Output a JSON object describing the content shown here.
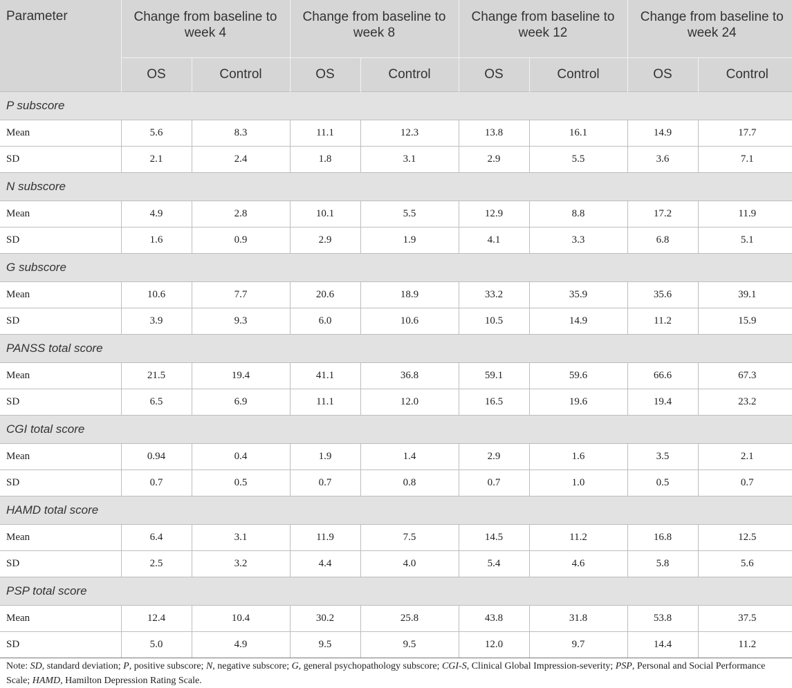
{
  "header": {
    "parameter": "Parameter",
    "groups": [
      "Change from baseline to week 4",
      "Change from baseline to week 8",
      "Change from baseline to week 12",
      "Change from baseline to week 24"
    ],
    "sub": [
      "OS",
      "Control"
    ]
  },
  "sections": [
    {
      "title": "P subscore",
      "rows": [
        {
          "label": "Mean",
          "values": [
            "5.6",
            "8.3",
            "11.1",
            "12.3",
            "13.8",
            "16.1",
            "14.9",
            "17.7"
          ]
        },
        {
          "label": "SD",
          "values": [
            "2.1",
            "2.4",
            "1.8",
            "3.1",
            "2.9",
            "5.5",
            "3.6",
            "7.1"
          ]
        }
      ]
    },
    {
      "title": "N subscore",
      "rows": [
        {
          "label": "Mean",
          "values": [
            "4.9",
            "2.8",
            "10.1",
            "5.5",
            "12.9",
            "8.8",
            "17.2",
            "11.9"
          ]
        },
        {
          "label": "SD",
          "values": [
            "1.6",
            "0.9",
            "2.9",
            "1.9",
            "4.1",
            "3.3",
            "6.8",
            "5.1"
          ]
        }
      ]
    },
    {
      "title": "G subscore",
      "rows": [
        {
          "label": "Mean",
          "values": [
            "10.6",
            "7.7",
            "20.6",
            "18.9",
            "33.2",
            "35.9",
            "35.6",
            "39.1"
          ]
        },
        {
          "label": "SD",
          "values": [
            "3.9",
            "9.3",
            "6.0",
            "10.6",
            "10.5",
            "14.9",
            "11.2",
            "15.9"
          ]
        }
      ]
    },
    {
      "title": "PANSS total score",
      "rows": [
        {
          "label": "Mean",
          "values": [
            "21.5",
            "19.4",
            "41.1",
            "36.8",
            "59.1",
            "59.6",
            "66.6",
            "67.3"
          ]
        },
        {
          "label": "SD",
          "values": [
            "6.5",
            "6.9",
            "11.1",
            "12.0",
            "16.5",
            "19.6",
            "19.4",
            "23.2"
          ]
        }
      ]
    },
    {
      "title": "CGI total score",
      "rows": [
        {
          "label": "Mean",
          "values": [
            "0.94",
            "0.4",
            "1.9",
            "1.4",
            "2.9",
            "1.6",
            "3.5",
            "2.1"
          ]
        },
        {
          "label": "SD",
          "values": [
            "0.7",
            "0.5",
            "0.7",
            "0.8",
            "0.7",
            "1.0",
            "0.5",
            "0.7"
          ]
        }
      ]
    },
    {
      "title": "HAMD total score",
      "rows": [
        {
          "label": "Mean",
          "values": [
            "6.4",
            "3.1",
            "11.9",
            "7.5",
            "14.5",
            "11.2",
            "16.8",
            "12.5"
          ]
        },
        {
          "label": "SD",
          "values": [
            "2.5",
            "3.2",
            "4.4",
            "4.0",
            "5.4",
            "4.6",
            "5.8",
            "5.6"
          ]
        }
      ]
    },
    {
      "title": "PSP total score",
      "rows": [
        {
          "label": "Mean",
          "values": [
            "12.4",
            "10.4",
            "30.2",
            "25.8",
            "43.8",
            "31.8",
            "53.8",
            "37.5"
          ]
        },
        {
          "label": "SD",
          "values": [
            "5.0",
            "4.9",
            "9.5",
            "9.5",
            "12.0",
            "9.7",
            "14.4",
            "11.2"
          ]
        }
      ]
    }
  ],
  "note": [
    {
      "text": "Note: ",
      "italic": false
    },
    {
      "text": "SD",
      "italic": true
    },
    {
      "text": ", standard deviation; ",
      "italic": false
    },
    {
      "text": "P",
      "italic": true
    },
    {
      "text": ", positive subscore; ",
      "italic": false
    },
    {
      "text": "N",
      "italic": true
    },
    {
      "text": ", negative subscore; ",
      "italic": false
    },
    {
      "text": "G",
      "italic": true
    },
    {
      "text": ", general psychopathology subscore; ",
      "italic": false
    },
    {
      "text": "CGI-S",
      "italic": true
    },
    {
      "text": ", Clinical Global Impression-severity; ",
      "italic": false
    },
    {
      "text": "PSP",
      "italic": true
    },
    {
      "text": ", Personal and Social Performance Scale; ",
      "italic": false
    },
    {
      "text": "HAMD",
      "italic": true
    },
    {
      "text": ", Hamilton Depression Rating Scale.",
      "italic": false
    }
  ]
}
